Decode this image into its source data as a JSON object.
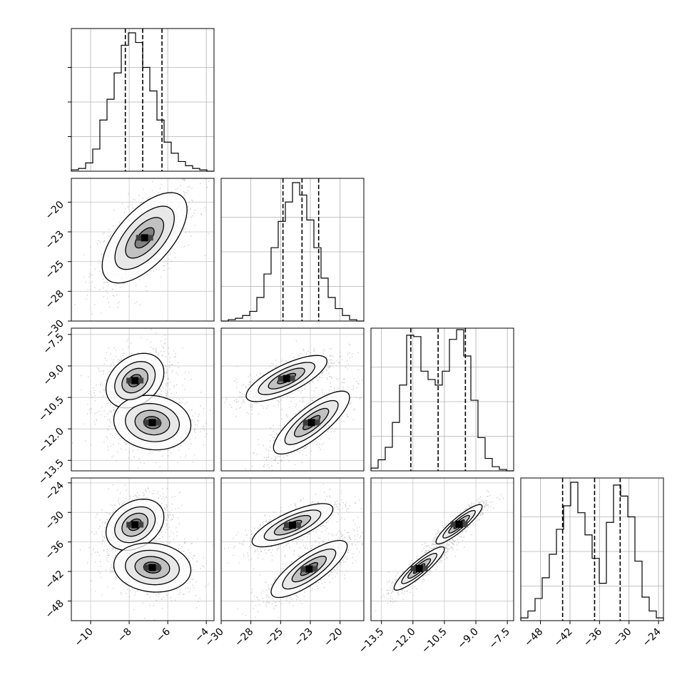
{
  "chart_data": {
    "type": "corner",
    "grid": true,
    "parameters": [
      {
        "range": [
          -11,
          -3.6
        ],
        "ticks": [
          -10,
          -8,
          -6,
          -4
        ],
        "quantiles": [
          -8.2,
          -7.3,
          -6.3
        ],
        "hist": [
          0.01,
          0.02,
          0.06,
          0.16,
          0.37,
          0.52,
          0.71,
          0.91,
          1.0,
          0.93,
          0.75,
          0.58,
          0.37,
          0.21,
          0.13,
          0.07,
          0.04,
          0.02,
          0.01,
          0.0
        ]
      },
      {
        "range": [
          -30,
          -18
        ],
        "ticks": [
          -20.0,
          -22.5,
          -25.0,
          -27.5,
          -30.0
        ],
        "xticks": [
          -30.0,
          -27.5,
          -25.0,
          -22.5,
          -20.0
        ],
        "quantiles": [
          -24.8,
          -23.2,
          -21.8
        ],
        "hist": [
          0.0,
          0.01,
          0.02,
          0.04,
          0.07,
          0.17,
          0.34,
          0.53,
          0.72,
          0.86,
          1.0,
          0.91,
          0.73,
          0.53,
          0.31,
          0.17,
          0.09,
          0.04,
          0.01,
          0.0
        ]
      },
      {
        "range": [
          -14,
          -7.2
        ],
        "ticks": [
          -7.5,
          -9.0,
          -10.5,
          -12.0,
          -13.5
        ],
        "xticks": [
          -13.5,
          -12.0,
          -10.5,
          -9.0,
          -7.5
        ],
        "quantiles": [
          -12.1,
          -10.8,
          -9.5
        ],
        "hist": [
          0.02,
          0.08,
          0.17,
          0.35,
          0.62,
          0.98,
          0.97,
          0.72,
          0.66,
          0.62,
          0.72,
          0.95,
          1.02,
          0.83,
          0.51,
          0.24,
          0.09,
          0.03,
          0.01,
          0.0
        ]
      },
      {
        "range": [
          -52,
          -23
        ],
        "ticks": [
          -24,
          -30,
          -36,
          -42,
          -48
        ],
        "xticks": [
          -48,
          -42,
          -36,
          -30,
          -24
        ],
        "quantiles": [
          -43.5,
          -37.0,
          -31.8
        ],
        "hist": [
          0.02,
          0.07,
          0.16,
          0.31,
          0.48,
          0.66,
          0.83,
          1.0,
          0.78,
          0.62,
          0.45,
          0.27,
          0.71,
          0.98,
          0.9,
          0.75,
          0.43,
          0.17,
          0.07,
          0.02
        ]
      }
    ],
    "pairs": [
      {
        "xi": 0,
        "yi": 1,
        "blobs": [
          {
            "cx": -7.2,
            "cy": -23.0,
            "sx": 1.1,
            "sy": 1.9,
            "rho": 0.62,
            "w": 1
          }
        ]
      },
      {
        "xi": 0,
        "yi": 2,
        "blobs": [
          {
            "cx": -7.7,
            "cy": -9.7,
            "sx": 0.75,
            "sy": 0.65,
            "rho": 0.3,
            "w": 1.1
          },
          {
            "cx": -6.8,
            "cy": -11.7,
            "sx": 1.0,
            "sy": 0.65,
            "rho": -0.1,
            "w": 0.8
          }
        ]
      },
      {
        "xi": 1,
        "yi": 2,
        "blobs": [
          {
            "cx": -24.5,
            "cy": -9.6,
            "sx": 1.7,
            "sy": 0.55,
            "rho": 0.75,
            "w": 1
          },
          {
            "cx": -22.4,
            "cy": -11.7,
            "sx": 1.6,
            "sy": 0.75,
            "rho": 0.8,
            "w": 1.05
          }
        ]
      },
      {
        "xi": 0,
        "yi": 3,
        "blobs": [
          {
            "cx": -7.7,
            "cy": -32.5,
            "sx": 0.75,
            "sy": 2.6,
            "rho": 0.3,
            "w": 1.1
          },
          {
            "cx": -6.8,
            "cy": -41.2,
            "sx": 1.0,
            "sy": 2.5,
            "rho": -0.1,
            "w": 0.8
          }
        ]
      },
      {
        "xi": 1,
        "yi": 3,
        "blobs": [
          {
            "cx": -24.0,
            "cy": -32.6,
            "sx": 1.7,
            "sy": 2.2,
            "rho": 0.75,
            "w": 1
          },
          {
            "cx": -22.6,
            "cy": -41.5,
            "sx": 1.6,
            "sy": 2.9,
            "rho": 0.8,
            "w": 1.05
          }
        ]
      },
      {
        "xi": 2,
        "yi": 3,
        "blobs": [
          {
            "cx": -9.8,
            "cy": -32.4,
            "sx": 0.55,
            "sy": 2.0,
            "rho": 0.9,
            "w": 1
          },
          {
            "cx": -11.7,
            "cy": -41.4,
            "sx": 0.6,
            "sy": 2.2,
            "rho": 0.9,
            "w": 1
          }
        ]
      }
    ]
  }
}
